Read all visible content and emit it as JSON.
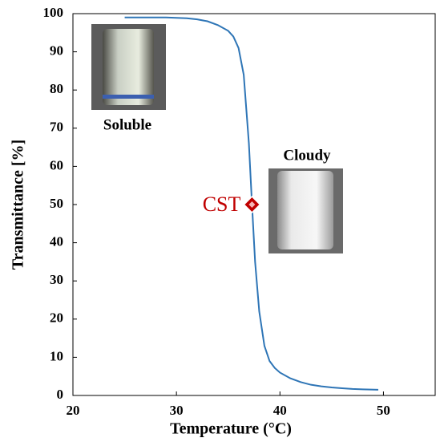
{
  "chart_data": {
    "type": "line",
    "x_label": "Temperature (°C)",
    "y_label": "Transmittance  [%]",
    "x": [
      25,
      27,
      29,
      31,
      32,
      33,
      34,
      35,
      35.5,
      36,
      36.5,
      37,
      37.3,
      37.6,
      38,
      38.5,
      39,
      39.5,
      40,
      41,
      42,
      43,
      44,
      45,
      46,
      47,
      48,
      49.5
    ],
    "values": [
      99,
      99,
      99,
      98.8,
      98.5,
      98,
      97,
      95.5,
      94,
      91,
      84,
      66,
      50,
      35,
      22,
      13,
      9,
      7.2,
      6,
      4.5,
      3.5,
      2.8,
      2.4,
      2.1,
      1.9,
      1.7,
      1.6,
      1.5
    ],
    "color": "#2e75b6",
    "xlim": [
      20,
      55
    ],
    "ylim": [
      0,
      100
    ],
    "xticks": [
      20,
      30,
      40,
      50
    ],
    "yticks": [
      0,
      10,
      20,
      30,
      40,
      50,
      60,
      70,
      80,
      90,
      100
    ],
    "grid": false,
    "point": {
      "label": "CST",
      "x": 37.3,
      "y": 50,
      "color": "#c00000"
    },
    "annotations": [
      "Soluble",
      "Cloudy"
    ]
  }
}
